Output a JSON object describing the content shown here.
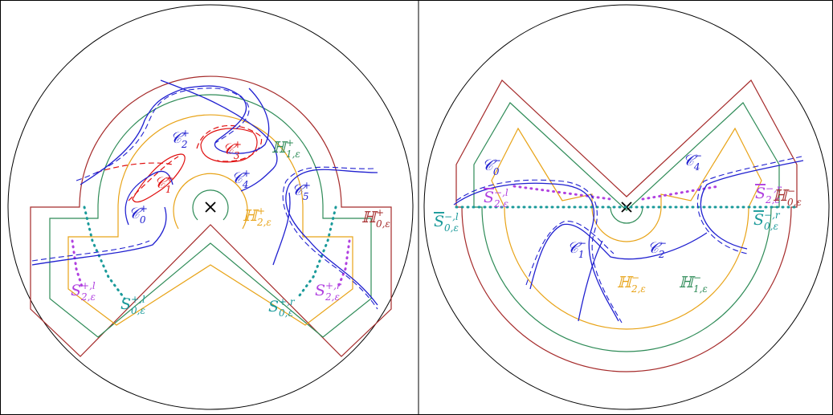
{
  "labels": [
    {
      "base": "𝒞",
      "sup": "+",
      "sub": "0"
    },
    {
      "base": "𝒞",
      "sup": "+",
      "sub": "1"
    },
    {
      "base": "𝒞",
      "sup": "+",
      "sub": "2"
    },
    {
      "base": "𝒞",
      "sup": "+",
      "sub": "3"
    },
    {
      "base": "𝒞",
      "sup": "+",
      "sub": "4"
    },
    {
      "base": "𝒞",
      "sup": "+",
      "sub": "5"
    },
    {
      "base": "ℍ",
      "sup": "+",
      "sub": "1,ε"
    },
    {
      "base": "ℍ",
      "sup": "+",
      "sub": "2,ε"
    },
    {
      "base": "ℍ",
      "sup": "+",
      "sub": "0,ε"
    },
    {
      "base": "S",
      "sup": "+,l",
      "sub": "2,ε"
    },
    {
      "base": "S",
      "sup": "+,l",
      "sub": "0,ε"
    },
    {
      "base": "S",
      "sup": "+,r",
      "sub": "0,ε"
    },
    {
      "base": "S",
      "sup": "+,r",
      "sub": "2,ε"
    },
    {
      "base": "𝒞",
      "sup": "−",
      "sub": "0"
    },
    {
      "base": "𝒞",
      "sup": "−",
      "sub": "4"
    },
    {
      "base": "S",
      "sup": "−,l",
      "sub": "2,ε"
    },
    {
      "base": "S",
      "sup": "−,r",
      "sub": "2,ε"
    },
    {
      "base": "ℍ",
      "sup": "−",
      "sub": "0,ε"
    },
    {
      "base": "S",
      "sup": "−,l",
      "sub": "0,ε"
    },
    {
      "base": "S",
      "sup": "−,r",
      "sub": "0,ε"
    },
    {
      "base": "𝒞",
      "sup": "−",
      "sub": "1"
    },
    {
      "base": "𝒞",
      "sup": "−",
      "sub": "2"
    },
    {
      "base": "ℍ",
      "sup": "−",
      "sub": "2,ε"
    },
    {
      "base": "ℍ",
      "sup": "−",
      "sub": "1,ε"
    }
  ]
}
